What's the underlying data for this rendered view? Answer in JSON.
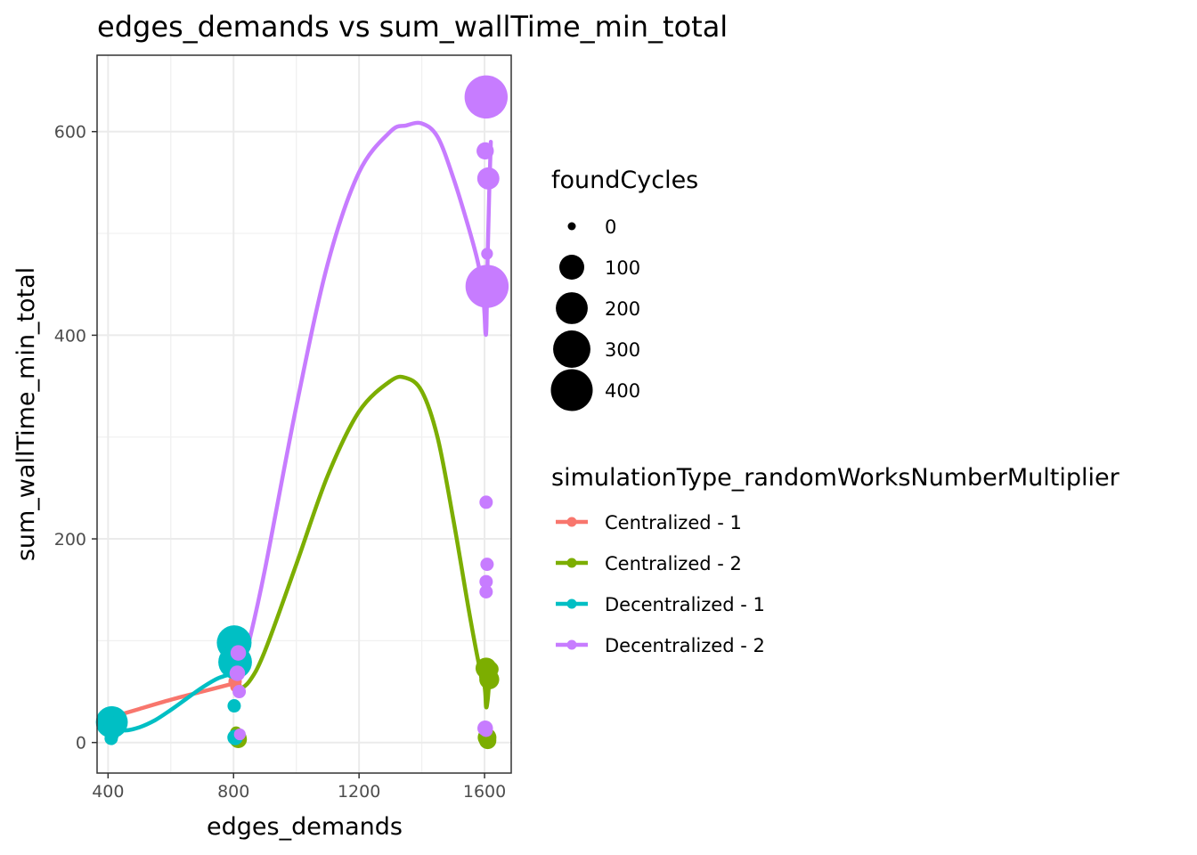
{
  "chart_data": {
    "type": "scatter",
    "title": "edges_demands  vs  sum_wallTime_min_total",
    "xlabel": "edges_demands",
    "ylabel": "sum_wallTime_min_total",
    "xlim": [
      365,
      1685
    ],
    "ylim": [
      -30,
      675
    ],
    "x_ticks": [
      400,
      800,
      1200,
      1600
    ],
    "y_ticks": [
      0,
      200,
      400,
      600
    ],
    "grid": true,
    "size_legend": {
      "title": "foundCycles",
      "entries": [
        {
          "label": "0",
          "value": 0
        },
        {
          "label": "100",
          "value": 100
        },
        {
          "label": "200",
          "value": 200
        },
        {
          "label": "300",
          "value": 300
        },
        {
          "label": "400",
          "value": 400
        }
      ]
    },
    "color_legend": {
      "title": "simulationType_randomWorksNumberMultiplier",
      "placement": "right"
    },
    "series": [
      {
        "name": "Centralized - 1",
        "color": "#F8766D",
        "points": [
          {
            "x": 412,
            "y": 25,
            "size": 50
          },
          {
            "x": 418,
            "y": 23,
            "size": 30
          },
          {
            "x": 802,
            "y": 88,
            "size": 20
          },
          {
            "x": 805,
            "y": 60,
            "size": 10
          },
          {
            "x": 808,
            "y": 55,
            "size": 5
          }
        ],
        "smooth": [
          [
            412,
            25
          ],
          [
            500,
            33
          ],
          [
            600,
            42
          ],
          [
            700,
            50
          ],
          [
            800,
            58
          ]
        ]
      },
      {
        "name": "Centralized - 2",
        "color": "#7CAE00",
        "points": [
          {
            "x": 808,
            "y": 10,
            "size": 5
          },
          {
            "x": 815,
            "y": 3,
            "size": 30
          },
          {
            "x": 820,
            "y": 5,
            "size": 10
          },
          {
            "x": 1605,
            "y": 73,
            "size": 60
          },
          {
            "x": 1612,
            "y": 66,
            "size": 40
          },
          {
            "x": 1608,
            "y": 5,
            "size": 40
          },
          {
            "x": 1610,
            "y": 2,
            "size": 30
          },
          {
            "x": 1615,
            "y": 62,
            "size": 50
          },
          {
            "x": 1620,
            "y": 72,
            "size": 20
          }
        ],
        "smooth": [
          [
            808,
            50
          ],
          [
            850,
            60
          ],
          [
            900,
            90
          ],
          [
            1000,
            175
          ],
          [
            1100,
            262
          ],
          [
            1200,
            325
          ],
          [
            1300,
            355
          ],
          [
            1350,
            358
          ],
          [
            1400,
            345
          ],
          [
            1450,
            300
          ],
          [
            1500,
            220
          ],
          [
            1550,
            130
          ],
          [
            1580,
            80
          ],
          [
            1600,
            55
          ],
          [
            1605,
            35
          ],
          [
            1610,
            42
          ],
          [
            1615,
            60
          ],
          [
            1620,
            68
          ]
        ]
      },
      {
        "name": "Decentralized - 1",
        "color": "#00BFC4",
        "points": [
          {
            "x": 412,
            "y": 20,
            "size": 200
          },
          {
            "x": 418,
            "y": 15,
            "size": 60
          },
          {
            "x": 410,
            "y": 4,
            "size": 10
          },
          {
            "x": 415,
            "y": 7,
            "size": 5
          },
          {
            "x": 802,
            "y": 98,
            "size": 250
          },
          {
            "x": 805,
            "y": 79,
            "size": 230
          },
          {
            "x": 802,
            "y": 36,
            "size": 10
          },
          {
            "x": 805,
            "y": 5,
            "size": 20
          }
        ],
        "smooth": [
          [
            412,
            18
          ],
          [
            450,
            12
          ],
          [
            500,
            15
          ],
          [
            550,
            22
          ],
          [
            600,
            32
          ],
          [
            650,
            43
          ],
          [
            700,
            54
          ],
          [
            750,
            63
          ],
          [
            800,
            68
          ],
          [
            815,
            70
          ]
        ]
      },
      {
        "name": "Decentralized - 2",
        "color": "#C77CFF",
        "points": [
          {
            "x": 815,
            "y": 88,
            "size": 20
          },
          {
            "x": 812,
            "y": 68,
            "size": 20
          },
          {
            "x": 818,
            "y": 50,
            "size": 10
          },
          {
            "x": 820,
            "y": 8,
            "size": 5
          },
          {
            "x": 1605,
            "y": 634,
            "size": 430
          },
          {
            "x": 1602,
            "y": 581,
            "size": 30
          },
          {
            "x": 1612,
            "y": 554,
            "size": 70
          },
          {
            "x": 1608,
            "y": 480,
            "size": 5
          },
          {
            "x": 1608,
            "y": 448,
            "size": 430
          },
          {
            "x": 1605,
            "y": 236,
            "size": 10
          },
          {
            "x": 1608,
            "y": 175,
            "size": 10
          },
          {
            "x": 1605,
            "y": 158,
            "size": 10
          },
          {
            "x": 1605,
            "y": 148,
            "size": 10
          },
          {
            "x": 1602,
            "y": 14,
            "size": 20
          },
          {
            "x": 1605,
            "y": 12,
            "size": 10
          }
        ],
        "smooth": [
          [
            815,
            62
          ],
          [
            850,
            100
          ],
          [
            900,
            170
          ],
          [
            1000,
            330
          ],
          [
            1100,
            470
          ],
          [
            1200,
            560
          ],
          [
            1300,
            600
          ],
          [
            1350,
            606
          ],
          [
            1400,
            608
          ],
          [
            1450,
            595
          ],
          [
            1500,
            555
          ],
          [
            1550,
            505
          ],
          [
            1580,
            470
          ],
          [
            1595,
            440
          ],
          [
            1600,
            420
          ],
          [
            1603,
            402
          ],
          [
            1606,
            410
          ],
          [
            1610,
            480
          ],
          [
            1615,
            540
          ],
          [
            1620,
            590
          ]
        ]
      }
    ]
  }
}
